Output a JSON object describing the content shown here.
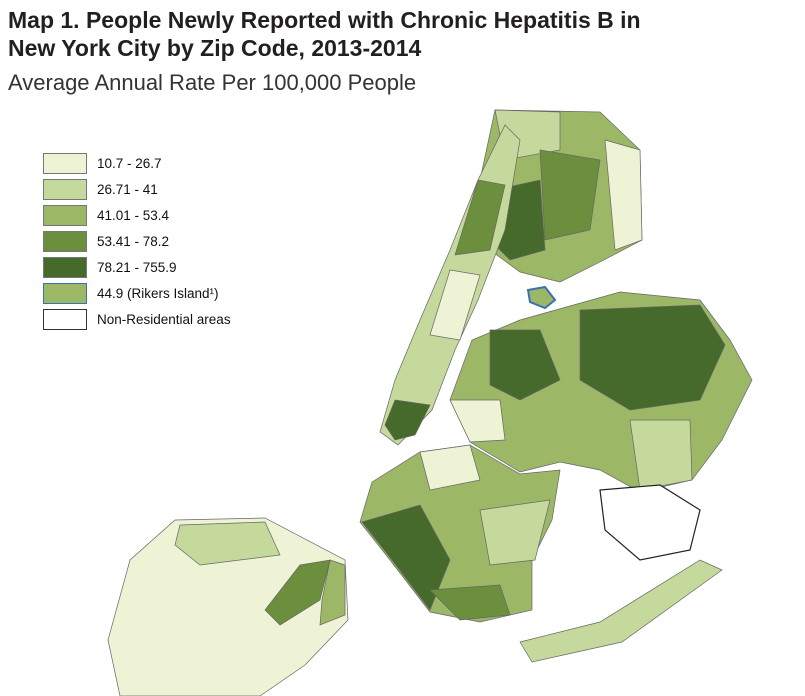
{
  "title": "Map 1. People Newly Reported with Chronic Hepatitis B in New York City by Zip Code, 2013-2014",
  "title_line1": "Map 1. People Newly Reported with Chronic Hepatitis B in",
  "title_line2": "New York City by Zip Code, 2013-2014",
  "subtitle": "Average Annual Rate Per 100,000 People",
  "legend": [
    {
      "label": "10.7 - 26.7",
      "color": "#eef3d6"
    },
    {
      "label": "26.71 - 41",
      "color": "#c4d99b"
    },
    {
      "label": "41.01 - 53.4",
      "color": "#9cb866"
    },
    {
      "label": "53.41 - 78.2",
      "color": "#6b8f3c"
    },
    {
      "label": "78.21 - 755.9",
      "color": "#46692c"
    },
    {
      "label": "44.9  (Rikers Island¹)",
      "color": "#9cb866",
      "border": "#3b6fb6"
    },
    {
      "label": "Non-Residential areas",
      "color": "#ffffff"
    }
  ]
}
